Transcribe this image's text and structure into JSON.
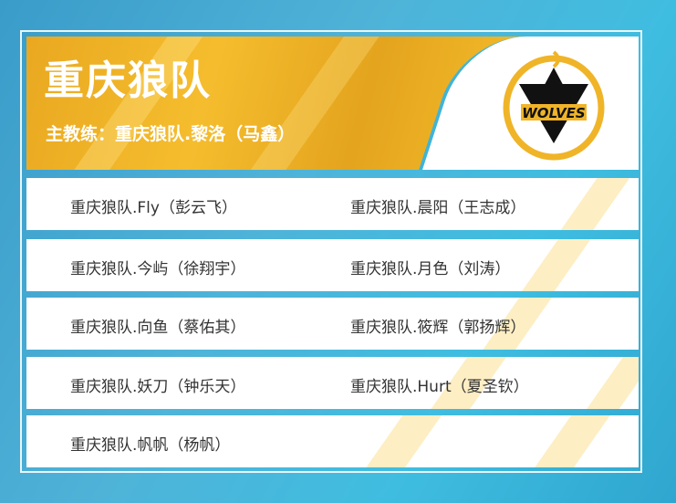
{
  "team": {
    "name": "重庆狼队",
    "coach": "主教练：重庆狼队.黎洛（马鑫）",
    "logo_text": "WOLVES"
  },
  "players": [
    [
      "重庆狼队.Fly（彭云飞）",
      "重庆狼队.晨阳（王志成）"
    ],
    [
      "重庆狼队.今屿（徐翔宇）",
      "重庆狼队.月色（刘涛）"
    ],
    [
      "重庆狼队.向鱼（蔡佑其）",
      "重庆狼队.筱辉（郭扬辉）"
    ],
    [
      "重庆狼队.妖刀（钟乐天）",
      "重庆狼队.Hurt（夏圣钦）"
    ],
    [
      "重庆狼队.帆帆（杨帆）",
      ""
    ]
  ],
  "colors": {
    "gold": "#f0b428",
    "blue": "#3fb4d8"
  }
}
